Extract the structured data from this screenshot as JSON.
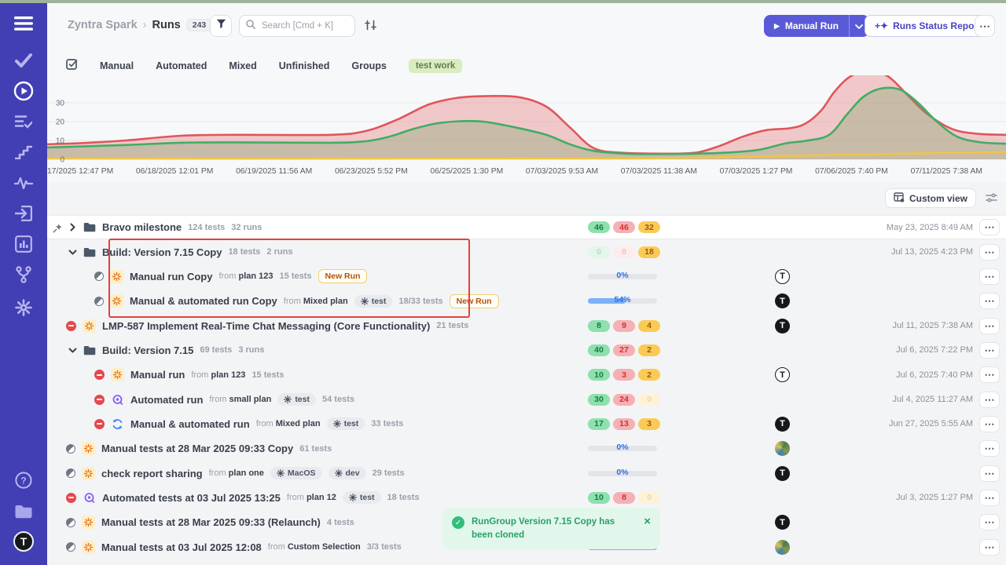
{
  "breadcrumb": {
    "project": "Zyntra Spark",
    "separator": "›",
    "page": "Runs",
    "count": "243"
  },
  "header": {
    "search_placeholder": "Search [Cmd + K]",
    "manual_run_label": "Manual Run",
    "report_label": "Runs Status Report",
    "more_label": "⋯"
  },
  "tabs": {
    "items": [
      "Manual",
      "Automated",
      "Mixed",
      "Unfinished",
      "Groups"
    ],
    "active_filter": "test work"
  },
  "toolbar": {
    "custom_view": "Custom view"
  },
  "chart_data": {
    "type": "area",
    "grid": true,
    "yticks": [
      0,
      10,
      20,
      30
    ],
    "ylim": [
      0,
      44
    ],
    "x_labels": [
      "17/2025 12:47 PM",
      "06/18/2025 12:01 PM",
      "06/19/2025 11:56 AM",
      "06/23/2025 5:52 PM",
      "06/25/2025 1:30 PM",
      "07/03/2025 9:53 AM",
      "07/03/2025 11:38 AM",
      "07/03/2025 1:27 PM",
      "07/06/2025 7:40 PM",
      "07/11/2025 7:38 AM"
    ],
    "series": [
      {
        "name": "red",
        "color": "#e0565c",
        "fill": "rgba(229,90,90,0.30)",
        "points": [
          [
            60,
            8
          ],
          [
            100,
            8.5
          ],
          [
            160,
            10
          ],
          [
            230,
            12.5
          ],
          [
            300,
            13
          ],
          [
            420,
            13
          ],
          [
            465,
            15
          ],
          [
            505,
            21
          ],
          [
            545,
            29
          ],
          [
            580,
            32.5
          ],
          [
            615,
            33.5
          ],
          [
            660,
            33
          ],
          [
            695,
            28
          ],
          [
            725,
            17
          ],
          [
            755,
            6
          ],
          [
            790,
            3.5
          ],
          [
            845,
            3
          ],
          [
            885,
            3.5
          ],
          [
            915,
            7
          ],
          [
            945,
            12
          ],
          [
            975,
            15.5
          ],
          [
            1005,
            16.5
          ],
          [
            1025,
            19
          ],
          [
            1045,
            26
          ],
          [
            1062,
            36
          ],
          [
            1082,
            44
          ],
          [
            1105,
            47
          ],
          [
            1130,
            44
          ],
          [
            1155,
            34
          ],
          [
            1180,
            24
          ],
          [
            1212,
            16
          ],
          [
            1245,
            13.5
          ],
          [
            1280,
            13
          ]
        ]
      },
      {
        "name": "green",
        "color": "#3fae63",
        "fill": "rgba(106,160,92,0.30)",
        "points": [
          [
            60,
            6.3
          ],
          [
            100,
            6.8
          ],
          [
            160,
            7.6
          ],
          [
            230,
            8.8
          ],
          [
            300,
            9
          ],
          [
            420,
            8.8
          ],
          [
            465,
            9.6
          ],
          [
            495,
            12
          ],
          [
            525,
            16
          ],
          [
            555,
            19
          ],
          [
            585,
            20.2
          ],
          [
            615,
            20
          ],
          [
            655,
            17
          ],
          [
            695,
            13
          ],
          [
            725,
            8
          ],
          [
            755,
            4.5
          ],
          [
            795,
            3
          ],
          [
            845,
            2.8
          ],
          [
            885,
            3
          ],
          [
            925,
            3.6
          ],
          [
            965,
            5
          ],
          [
            1000,
            8.5
          ],
          [
            1025,
            9.8
          ],
          [
            1055,
            13
          ],
          [
            1078,
            24
          ],
          [
            1098,
            33
          ],
          [
            1120,
            37.5
          ],
          [
            1145,
            37
          ],
          [
            1168,
            30
          ],
          [
            1192,
            20
          ],
          [
            1218,
            12
          ],
          [
            1248,
            9
          ],
          [
            1280,
            8.3
          ]
        ]
      },
      {
        "name": "yellow",
        "color": "#f0c545",
        "fill": "none",
        "points": [
          [
            60,
            0.4
          ],
          [
            500,
            0.4
          ],
          [
            800,
            0.5
          ],
          [
            900,
            1
          ],
          [
            1000,
            1.8
          ],
          [
            1100,
            2.6
          ],
          [
            1200,
            3.4
          ],
          [
            1280,
            3.8
          ]
        ]
      }
    ]
  },
  "rows": [
    {
      "kind": "group",
      "pinned": true,
      "expanded": false,
      "highlight": true,
      "title": "Bravo milestone",
      "meta": [
        "124 tests",
        "32 runs"
      ],
      "counts": [
        {
          "v": "46",
          "c": "green"
        },
        {
          "v": "46",
          "c": "red"
        },
        {
          "v": "32",
          "c": "yellow"
        }
      ],
      "date": "May 23, 2025 8:49 AM"
    },
    {
      "kind": "group",
      "expanded": true,
      "title": "Build: Version 7.15 Copy",
      "meta": [
        "18 tests",
        "2 runs"
      ],
      "counts": [
        {
          "v": "0",
          "c": "green",
          "faded": true
        },
        {
          "v": "0",
          "c": "red",
          "faded": true
        },
        {
          "v": "18",
          "c": "yellow"
        }
      ],
      "date": "Jul 13, 2025 4:23 PM"
    },
    {
      "kind": "run",
      "level": 2,
      "status": "half",
      "icon": "manual",
      "title": "Manual run Copy",
      "from_label": "from",
      "from": "plan 123",
      "meta": [
        "15 tests"
      ],
      "new_run": "New Run",
      "progress": {
        "label": "0%",
        "pct": 0
      },
      "avatar": "t-outline",
      "avatar_text": "T"
    },
    {
      "kind": "run",
      "level": 2,
      "status": "half",
      "icon": "manual",
      "title": "Manual & automated run Copy",
      "from_label": "from",
      "from": "Mixed plan",
      "tags": [
        "test"
      ],
      "meta": [
        "18/33 tests"
      ],
      "new_run": "New Run",
      "progress": {
        "label": "54%",
        "pct": 54
      },
      "avatar": "t-dark",
      "avatar_text": "T"
    },
    {
      "kind": "run",
      "level": 1,
      "status": "stopped",
      "icon": "manual",
      "title": "LMP-587 Implement Real-Time Chat Messaging (Core Functionality)",
      "meta": [
        "21 tests"
      ],
      "counts": [
        {
          "v": "8",
          "c": "green"
        },
        {
          "v": "9",
          "c": "red"
        },
        {
          "v": "4",
          "c": "yellow"
        }
      ],
      "avatar": "t-dark",
      "avatar_text": "T",
      "date": "Jul 11, 2025 7:38 AM"
    },
    {
      "kind": "group",
      "expanded": true,
      "title": "Build: Version 7.15",
      "meta": [
        "69 tests",
        "3 runs"
      ],
      "counts": [
        {
          "v": "40",
          "c": "green"
        },
        {
          "v": "27",
          "c": "red"
        },
        {
          "v": "2",
          "c": "yellow"
        }
      ],
      "date": "Jul 6, 2025 7:22 PM"
    },
    {
      "kind": "run",
      "level": 2,
      "status": "stopped",
      "icon": "manual",
      "title": "Manual run",
      "from_label": "from",
      "from": "plan 123",
      "meta": [
        "15 tests"
      ],
      "counts": [
        {
          "v": "10",
          "c": "green"
        },
        {
          "v": "3",
          "c": "red"
        },
        {
          "v": "2",
          "c": "yellow"
        }
      ],
      "avatar": "t-outline",
      "avatar_text": "T",
      "date": "Jul 6, 2025 7:40 PM"
    },
    {
      "kind": "run",
      "level": 2,
      "status": "stopped",
      "icon": "automated",
      "title": "Automated run",
      "from_label": "from",
      "from": "small plan",
      "tags": [
        "test"
      ],
      "meta": [
        "54 tests"
      ],
      "counts": [
        {
          "v": "30",
          "c": "green"
        },
        {
          "v": "24",
          "c": "red"
        },
        {
          "v": "0",
          "c": "yellow",
          "faded": true
        }
      ],
      "date": "Jul 4, 2025 11:27 AM"
    },
    {
      "kind": "run",
      "level": 2,
      "status": "stopped",
      "icon": "mixed",
      "title": "Manual & automated run",
      "from_label": "from",
      "from": "Mixed plan",
      "tags": [
        "test"
      ],
      "meta": [
        "33 tests"
      ],
      "counts": [
        {
          "v": "17",
          "c": "green"
        },
        {
          "v": "13",
          "c": "red"
        },
        {
          "v": "3",
          "c": "yellow"
        }
      ],
      "avatar": "t-dark",
      "avatar_text": "T",
      "date": "Jun 27, 2025 5:55 AM"
    },
    {
      "kind": "run",
      "level": 1,
      "status": "half",
      "icon": "manual",
      "title": "Manual tests at 28 Mar 2025 09:33 Copy",
      "meta": [
        "61 tests"
      ],
      "progress": {
        "label": "0%",
        "pct": 0
      },
      "avatar": "photo"
    },
    {
      "kind": "run",
      "level": 1,
      "status": "half",
      "icon": "manual",
      "title": "check report sharing",
      "from_label": "from",
      "from": "plan one",
      "tags": [
        "MacOS",
        "dev"
      ],
      "meta": [
        "29 tests"
      ],
      "progress": {
        "label": "0%",
        "pct": 0
      },
      "avatar": "t-dark",
      "avatar_text": "T"
    },
    {
      "kind": "run",
      "level": 1,
      "status": "stopped",
      "icon": "automated",
      "title": "Automated tests at 03 Jul 2025 13:25",
      "from_label": "from",
      "from": "plan 12",
      "tags": [
        "test"
      ],
      "meta": [
        "18 tests"
      ],
      "counts": [
        {
          "v": "10",
          "c": "green"
        },
        {
          "v": "8",
          "c": "red"
        },
        {
          "v": "0",
          "c": "yellow",
          "faded": true
        }
      ],
      "date": "Jul 3, 2025 1:27 PM"
    },
    {
      "kind": "run",
      "level": 1,
      "status": "half",
      "icon": "manual",
      "title": "Manual tests at 28 Mar 2025 09:33 (Relaunch)",
      "meta": [
        "4 tests"
      ],
      "progress": {
        "label": "0%",
        "pct": 0
      },
      "avatar": "t-dark",
      "avatar_text": "T"
    },
    {
      "kind": "run",
      "level": 1,
      "status": "half",
      "icon": "manual",
      "title": "Manual tests at 03 Jul 2025 12:08",
      "from_label": "from",
      "from": "Custom Selection",
      "meta": [
        "3/3 tests"
      ],
      "progress": {
        "label": "100%",
        "pct": 100
      },
      "avatar": "photo"
    }
  ],
  "toast": {
    "message": "RunGroup Version 7.15 Copy has been cloned",
    "close": "×"
  },
  "colors": {
    "sidebar": "#423fb5",
    "accent": "#5a5ad8",
    "chart_red": "#e0565c",
    "chart_green": "#3fae63",
    "chart_yellow": "#f0c545",
    "annotation": "#e5403c"
  }
}
